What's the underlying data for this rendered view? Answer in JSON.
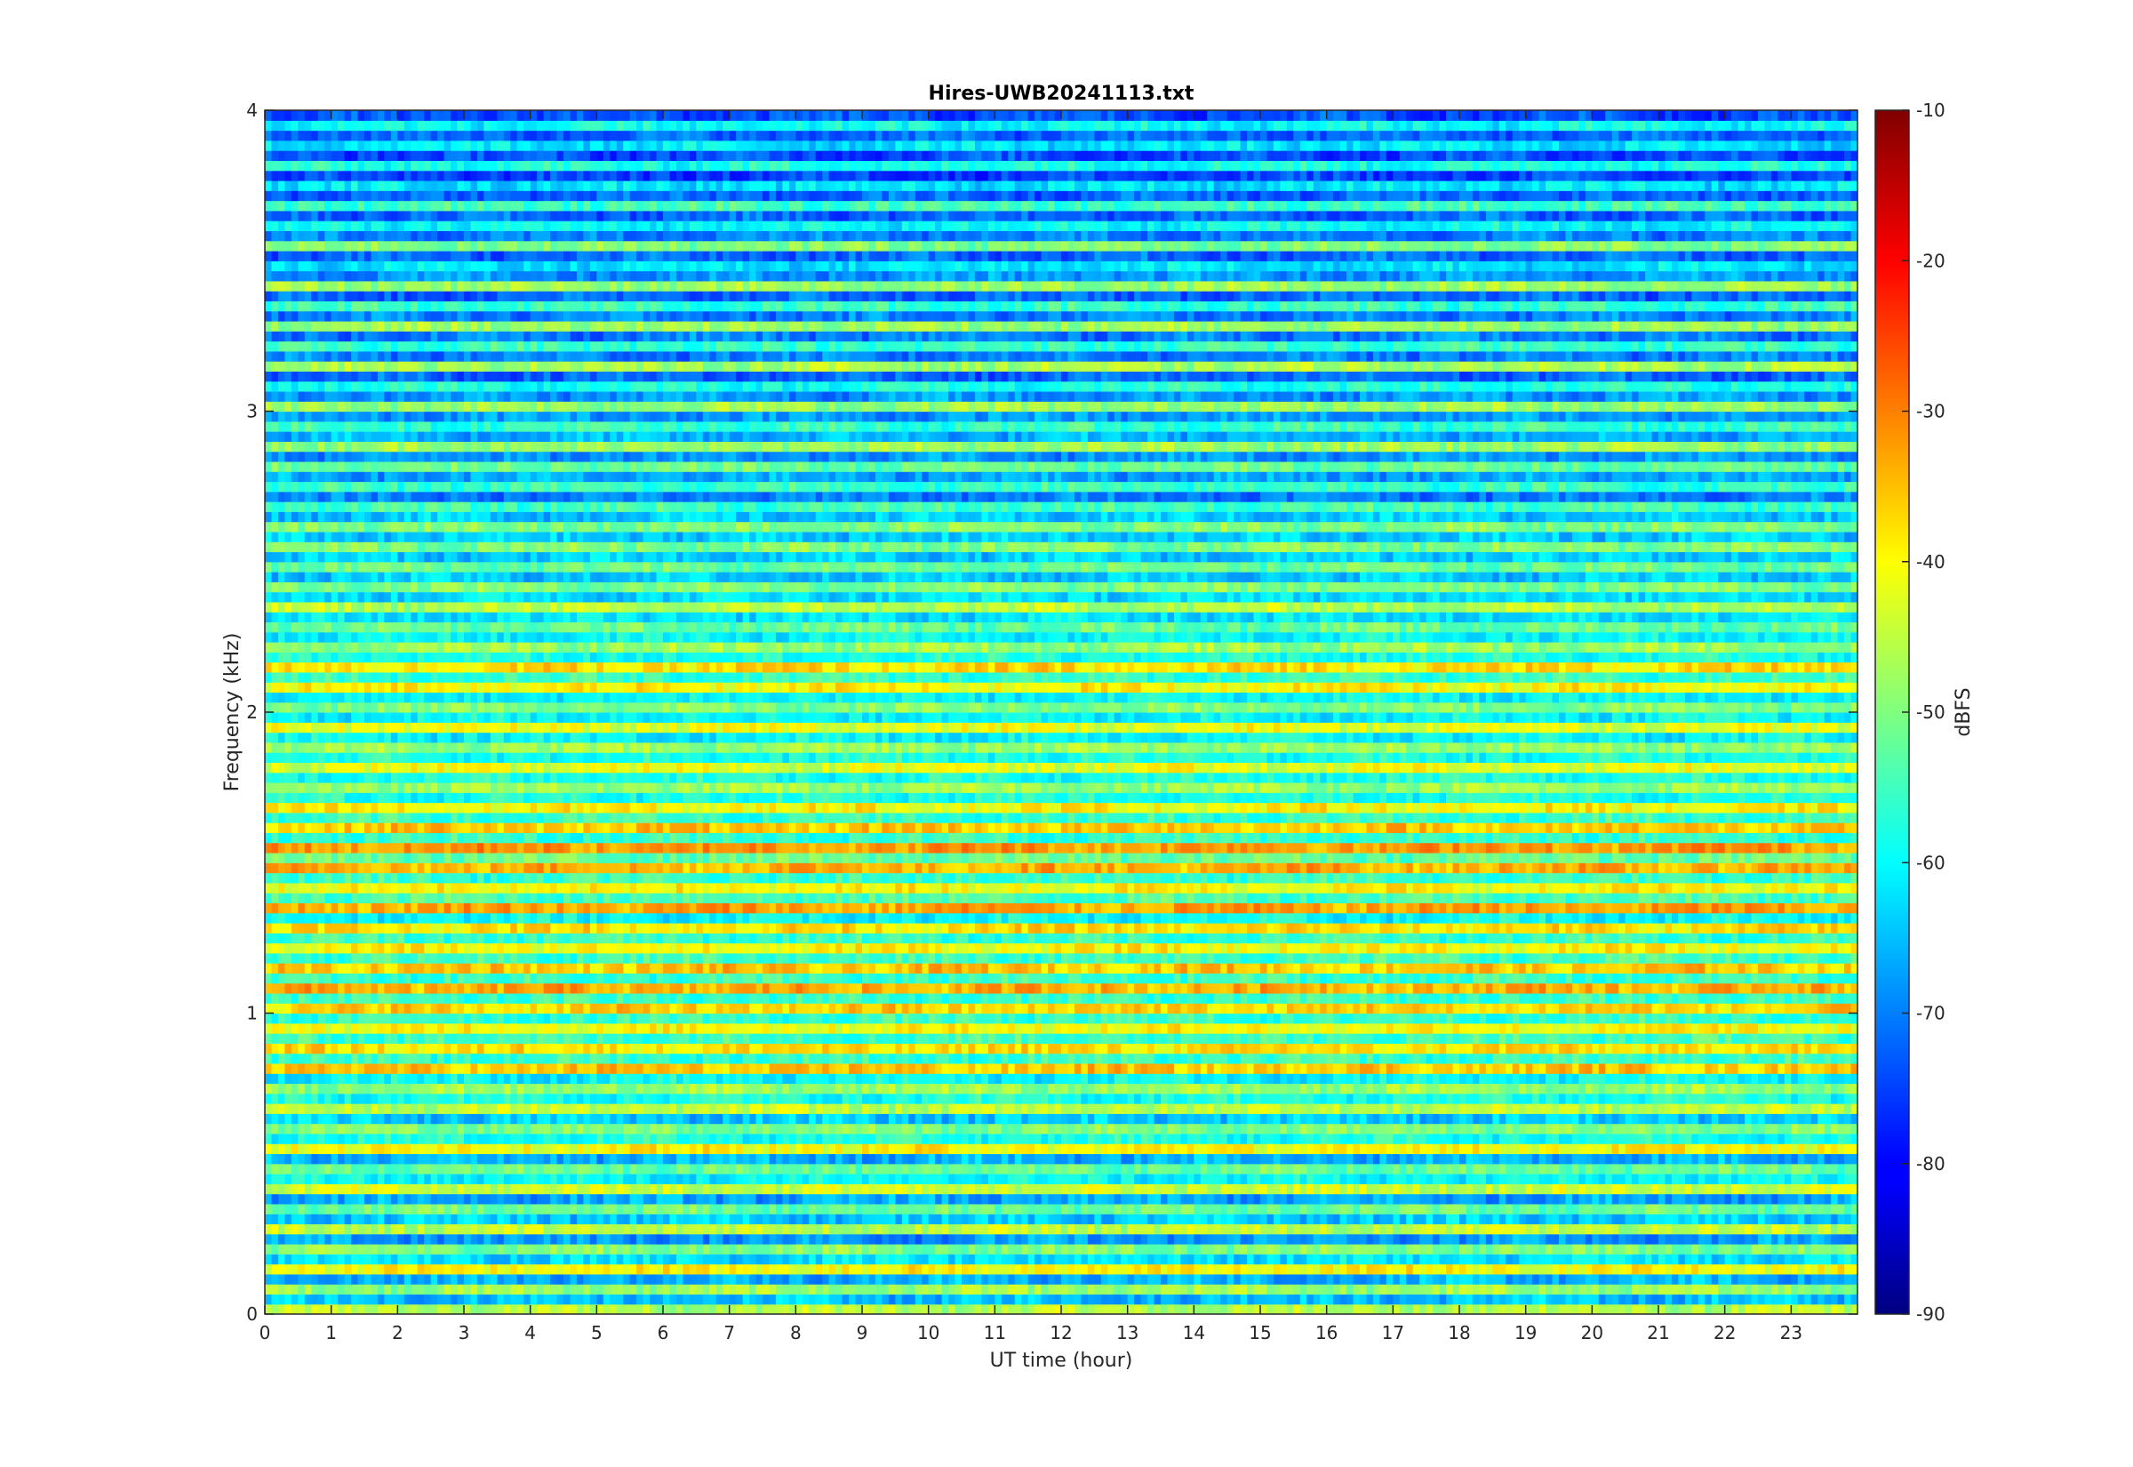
{
  "chart_data": {
    "type": "heatmap",
    "title": "Hires-UWB20241113.txt",
    "xlabel": "UT time (hour)",
    "ylabel": "Frequency (kHz)",
    "xlim": [
      0,
      24
    ],
    "ylim": [
      0,
      4
    ],
    "x_ticks": [
      0,
      1,
      2,
      3,
      4,
      5,
      6,
      7,
      8,
      9,
      10,
      11,
      12,
      13,
      14,
      15,
      16,
      17,
      18,
      19,
      20,
      21,
      22,
      23
    ],
    "y_ticks": [
      0,
      1,
      2,
      3,
      4
    ],
    "colormap": "jet",
    "colorbar": {
      "label": "dBFS",
      "range": [
        -90,
        -10
      ],
      "ticks": [
        -90,
        -80,
        -70,
        -60,
        -50,
        -40,
        -30,
        -20,
        -10
      ]
    },
    "bands_dbfs": [
      -46,
      -65,
      -48,
      -66,
      -40,
      -62,
      -50,
      -68,
      -45,
      -64,
      -52,
      -67,
      -44,
      -60,
      -52,
      -66,
      -40,
      -58,
      -50,
      -64,
      -45,
      -58,
      -48,
      -60,
      -36,
      -56,
      -38,
      -55,
      -40,
      -56,
      -37,
      -56,
      -34,
      -56,
      -36,
      -55,
      -40,
      -56,
      -38,
      -60,
      -33,
      -54,
      -40,
      -56,
      -34,
      -52,
      -32,
      -56,
      -36,
      -56,
      -40,
      -58,
      -48,
      -58,
      -42,
      -58,
      -48,
      -60,
      -42,
      -60,
      -50,
      -60,
      -40,
      -56,
      -38,
      -58,
      -48,
      -60,
      -52,
      -62,
      -46,
      -62,
      -50,
      -64,
      -52,
      -64,
      -50,
      -64,
      -50,
      -64,
      -55,
      -70,
      -56,
      -67,
      -52,
      -68,
      -48,
      -66,
      -56,
      -68,
      -48,
      -68,
      -58,
      -72,
      -47,
      -70,
      -56,
      -70,
      -48,
      -70,
      -56,
      -72,
      -48,
      -68,
      -62,
      -72,
      -50,
      -70,
      -60,
      -72,
      -55,
      -72,
      -62,
      -75,
      -58,
      -74,
      -62,
      -72,
      -60,
      -74
    ]
  }
}
